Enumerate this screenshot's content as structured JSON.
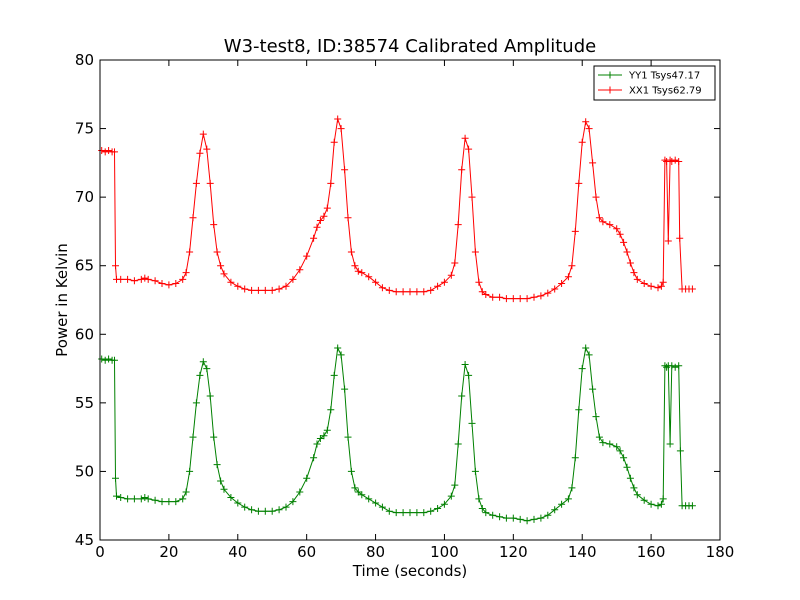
{
  "chart_data": {
    "type": "line",
    "title": "W3-test8, ID:38574 Calibrated Amplitude",
    "xlabel": "Time (seconds)",
    "ylabel": "Power in Kelvin",
    "xlim": [
      0,
      180
    ],
    "ylim": [
      45,
      80
    ],
    "xticks": [
      0,
      20,
      40,
      60,
      80,
      100,
      120,
      140,
      160,
      180
    ],
    "yticks": [
      45,
      50,
      55,
      60,
      65,
      70,
      75,
      80
    ],
    "grid": false,
    "legend_position": "top-right",
    "marker": "+",
    "series": [
      {
        "name": "YY1 Tsys47.17",
        "color": "#008000",
        "points": [
          [
            0.5,
            58.2
          ],
          [
            1.5,
            58.1
          ],
          [
            2.5,
            58.2
          ],
          [
            3.5,
            58.1
          ],
          [
            4.2,
            58.1
          ],
          [
            4.5,
            49.5
          ],
          [
            4.8,
            48.2
          ],
          [
            6,
            48.1
          ],
          [
            8,
            48.0
          ],
          [
            10,
            48.0
          ],
          [
            12,
            48.0
          ],
          [
            13,
            48.1
          ],
          [
            14,
            48.0
          ],
          [
            16,
            47.9
          ],
          [
            18,
            47.8
          ],
          [
            20,
            47.8
          ],
          [
            22,
            47.8
          ],
          [
            24,
            48.0
          ],
          [
            25,
            48.5
          ],
          [
            26,
            50.0
          ],
          [
            27,
            52.5
          ],
          [
            28,
            55.0
          ],
          [
            29,
            57.0
          ],
          [
            30,
            58.0
          ],
          [
            31,
            57.5
          ],
          [
            32,
            55.5
          ],
          [
            33,
            52.5
          ],
          [
            34,
            50.5
          ],
          [
            35,
            49.3
          ],
          [
            36,
            48.7
          ],
          [
            38,
            48.1
          ],
          [
            40,
            47.7
          ],
          [
            42,
            47.4
          ],
          [
            44,
            47.2
          ],
          [
            46,
            47.1
          ],
          [
            48,
            47.1
          ],
          [
            50,
            47.1
          ],
          [
            52,
            47.2
          ],
          [
            54,
            47.4
          ],
          [
            56,
            47.8
          ],
          [
            58,
            48.5
          ],
          [
            60,
            49.5
          ],
          [
            62,
            51.0
          ],
          [
            63,
            52.0
          ],
          [
            64,
            52.4
          ],
          [
            65,
            52.6
          ],
          [
            66,
            53.0
          ],
          [
            67,
            54.5
          ],
          [
            68,
            57.0
          ],
          [
            69,
            59.0
          ],
          [
            70,
            58.5
          ],
          [
            71,
            56.0
          ],
          [
            72,
            52.5
          ],
          [
            73,
            50.0
          ],
          [
            74,
            48.8
          ],
          [
            75,
            48.5
          ],
          [
            76,
            48.3
          ],
          [
            78,
            48.0
          ],
          [
            80,
            47.7
          ],
          [
            82,
            47.4
          ],
          [
            84,
            47.1
          ],
          [
            86,
            47.0
          ],
          [
            88,
            47.0
          ],
          [
            90,
            47.0
          ],
          [
            92,
            47.0
          ],
          [
            94,
            47.0
          ],
          [
            96,
            47.1
          ],
          [
            98,
            47.3
          ],
          [
            100,
            47.6
          ],
          [
            102,
            48.2
          ],
          [
            103,
            49.0
          ],
          [
            104,
            52.0
          ],
          [
            105,
            55.5
          ],
          [
            106,
            57.8
          ],
          [
            107,
            57.0
          ],
          [
            108,
            53.5
          ],
          [
            109,
            50.0
          ],
          [
            110,
            48.0
          ],
          [
            111,
            47.3
          ],
          [
            112,
            47.0
          ],
          [
            114,
            46.8
          ],
          [
            116,
            46.7
          ],
          [
            118,
            46.6
          ],
          [
            120,
            46.6
          ],
          [
            122,
            46.5
          ],
          [
            124,
            46.4
          ],
          [
            126,
            46.5
          ],
          [
            128,
            46.6
          ],
          [
            130,
            46.8
          ],
          [
            132,
            47.2
          ],
          [
            134,
            47.6
          ],
          [
            136,
            48.0
          ],
          [
            137,
            48.8
          ],
          [
            138,
            51.0
          ],
          [
            139,
            54.5
          ],
          [
            140,
            57.5
          ],
          [
            141,
            59.0
          ],
          [
            142,
            58.5
          ],
          [
            143,
            56.0
          ],
          [
            144,
            54.0
          ],
          [
            145,
            52.5
          ],
          [
            146,
            52.1
          ],
          [
            148,
            52.0
          ],
          [
            150,
            51.8
          ],
          [
            151,
            51.5
          ],
          [
            152,
            51.0
          ],
          [
            153,
            50.3
          ],
          [
            154,
            49.5
          ],
          [
            155,
            48.8
          ],
          [
            156,
            48.3
          ],
          [
            158,
            47.9
          ],
          [
            160,
            47.6
          ],
          [
            162,
            47.5
          ],
          [
            163,
            47.6
          ],
          [
            163.5,
            48.0
          ],
          [
            164,
            57.7
          ],
          [
            164.5,
            57.6
          ],
          [
            165,
            57.7
          ],
          [
            165.5,
            52.0
          ],
          [
            166,
            57.7
          ],
          [
            167,
            57.6
          ],
          [
            168,
            57.7
          ],
          [
            168.5,
            51.5
          ],
          [
            169,
            47.5
          ],
          [
            170,
            47.5
          ],
          [
            171,
            47.5
          ],
          [
            172,
            47.5
          ]
        ]
      },
      {
        "name": "XX1 Tsys62.79",
        "color": "#ff0000",
        "points": [
          [
            0.5,
            73.4
          ],
          [
            1.5,
            73.3
          ],
          [
            2.5,
            73.4
          ],
          [
            3.5,
            73.3
          ],
          [
            4.2,
            73.3
          ],
          [
            4.5,
            65.0
          ],
          [
            4.8,
            64.0
          ],
          [
            6,
            64.0
          ],
          [
            8,
            64.0
          ],
          [
            10,
            63.9
          ],
          [
            12,
            64.0
          ],
          [
            13,
            64.1
          ],
          [
            14,
            64.0
          ],
          [
            16,
            63.9
          ],
          [
            18,
            63.7
          ],
          [
            20,
            63.6
          ],
          [
            22,
            63.7
          ],
          [
            24,
            64.0
          ],
          [
            25,
            64.5
          ],
          [
            26,
            66.0
          ],
          [
            27,
            68.5
          ],
          [
            28,
            71.0
          ],
          [
            29,
            73.2
          ],
          [
            30,
            74.6
          ],
          [
            31,
            73.5
          ],
          [
            32,
            71.0
          ],
          [
            33,
            68.0
          ],
          [
            34,
            66.0
          ],
          [
            35,
            65.0
          ],
          [
            36,
            64.4
          ],
          [
            38,
            63.8
          ],
          [
            40,
            63.5
          ],
          [
            42,
            63.3
          ],
          [
            44,
            63.2
          ],
          [
            46,
            63.2
          ],
          [
            48,
            63.2
          ],
          [
            50,
            63.2
          ],
          [
            52,
            63.3
          ],
          [
            54,
            63.5
          ],
          [
            56,
            64.0
          ],
          [
            58,
            64.7
          ],
          [
            60,
            65.7
          ],
          [
            62,
            67.0
          ],
          [
            63,
            67.8
          ],
          [
            64,
            68.3
          ],
          [
            65,
            68.6
          ],
          [
            66,
            69.2
          ],
          [
            67,
            71.0
          ],
          [
            68,
            74.0
          ],
          [
            69,
            75.7
          ],
          [
            70,
            75.0
          ],
          [
            71,
            72.0
          ],
          [
            72,
            68.5
          ],
          [
            73,
            66.0
          ],
          [
            74,
            65.0
          ],
          [
            75,
            64.6
          ],
          [
            76,
            64.5
          ],
          [
            78,
            64.2
          ],
          [
            80,
            63.8
          ],
          [
            82,
            63.4
          ],
          [
            84,
            63.2
          ],
          [
            86,
            63.1
          ],
          [
            88,
            63.1
          ],
          [
            90,
            63.1
          ],
          [
            92,
            63.1
          ],
          [
            94,
            63.1
          ],
          [
            96,
            63.2
          ],
          [
            98,
            63.5
          ],
          [
            100,
            63.8
          ],
          [
            102,
            64.3
          ],
          [
            103,
            65.2
          ],
          [
            104,
            68.0
          ],
          [
            105,
            72.0
          ],
          [
            106,
            74.3
          ],
          [
            107,
            73.5
          ],
          [
            108,
            70.0
          ],
          [
            109,
            66.0
          ],
          [
            110,
            63.8
          ],
          [
            111,
            63.1
          ],
          [
            112,
            62.9
          ],
          [
            114,
            62.7
          ],
          [
            116,
            62.7
          ],
          [
            118,
            62.6
          ],
          [
            120,
            62.6
          ],
          [
            122,
            62.6
          ],
          [
            124,
            62.6
          ],
          [
            126,
            62.7
          ],
          [
            128,
            62.8
          ],
          [
            130,
            63.0
          ],
          [
            132,
            63.3
          ],
          [
            134,
            63.7
          ],
          [
            136,
            64.2
          ],
          [
            137,
            65.0
          ],
          [
            138,
            67.5
          ],
          [
            139,
            71.0
          ],
          [
            140,
            74.0
          ],
          [
            141,
            75.5
          ],
          [
            142,
            75.0
          ],
          [
            143,
            72.5
          ],
          [
            144,
            70.0
          ],
          [
            145,
            68.5
          ],
          [
            146,
            68.2
          ],
          [
            148,
            68.0
          ],
          [
            150,
            67.7
          ],
          [
            151,
            67.3
          ],
          [
            152,
            66.7
          ],
          [
            153,
            66.0
          ],
          [
            154,
            65.2
          ],
          [
            155,
            64.5
          ],
          [
            156,
            64.0
          ],
          [
            158,
            63.7
          ],
          [
            160,
            63.5
          ],
          [
            162,
            63.4
          ],
          [
            163,
            63.5
          ],
          [
            163.5,
            63.8
          ],
          [
            164,
            72.7
          ],
          [
            164.5,
            72.6
          ],
          [
            165,
            66.8
          ],
          [
            165.5,
            72.7
          ],
          [
            166,
            72.6
          ],
          [
            167,
            72.7
          ],
          [
            168,
            72.6
          ],
          [
            168.3,
            67.0
          ],
          [
            169,
            63.3
          ],
          [
            170,
            63.3
          ],
          [
            171,
            63.3
          ],
          [
            172,
            63.3
          ]
        ]
      }
    ]
  }
}
